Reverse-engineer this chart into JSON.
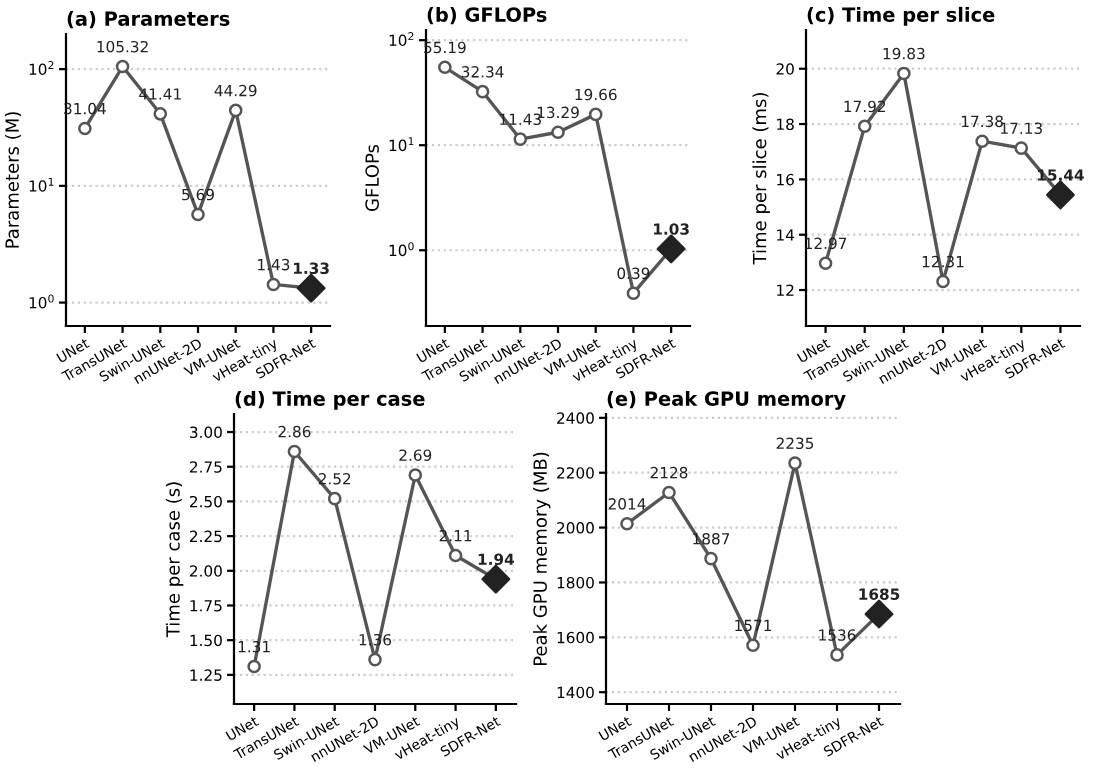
{
  "chart_data": [
    {
      "type": "line",
      "title": "(a) Parameters",
      "ylabel": "Parameters (M)",
      "log": true,
      "ylim": [
        0.63,
        200
      ],
      "yticks": [
        {
          "value": 1,
          "label": "10$^{0}$"
        },
        {
          "value": 10,
          "label": "10$^{1}$"
        },
        {
          "value": 100,
          "label": "10$^{2}$"
        }
      ],
      "grid": "y",
      "data_labels": true,
      "categories": [
        "UNet",
        "TransUNet",
        "Swin-UNet",
        "nnUNet-2D",
        "VM-UNet",
        "vHeat-tiny",
        "SDFR-Net"
      ],
      "series": [
        {
          "color": "#555555",
          "marker": [
            "circle",
            "circle",
            "circle",
            "circle",
            "circle",
            "circle",
            "diamond"
          ],
          "colors": [
            "#ffffff",
            "#ffffff",
            "#ffffff",
            "#ffffff",
            "#ffffff",
            "#ffffff",
            "#222222"
          ],
          "values": [
            31.04,
            105.32,
            41.41,
            5.69,
            44.29,
            1.43,
            1.33
          ]
        }
      ]
    },
    {
      "type": "line",
      "title": "(b) GFLOPs",
      "ylabel": "GFLOPs",
      "log": true,
      "ylim": [
        0.19,
        125
      ],
      "yticks": [
        {
          "value": 1,
          "label": "10$^{0}$"
        },
        {
          "value": 10,
          "label": "10$^{1}$"
        },
        {
          "value": 100,
          "label": "10$^{2}$"
        }
      ],
      "grid": "y",
      "data_labels": true,
      "categories": [
        "UNet",
        "TransUNet",
        "Swin-UNet",
        "nnUNet-2D",
        "VM-UNet",
        "vHeat-tiny",
        "SDFR-Net"
      ],
      "series": [
        {
          "color": "#555555",
          "marker": [
            "circle",
            "circle",
            "circle",
            "circle",
            "circle",
            "circle",
            "diamond"
          ],
          "colors": [
            "#ffffff",
            "#ffffff",
            "#ffffff",
            "#ffffff",
            "#ffffff",
            "#ffffff",
            "#222222"
          ],
          "values": [
            55.19,
            32.34,
            11.43,
            13.29,
            19.66,
            0.39,
            1.03
          ]
        }
      ]
    },
    {
      "type": "line",
      "title": "(c) Time per slice",
      "ylabel": "Time per slice (ms)",
      "ylim": [
        10.7,
        21.4
      ],
      "yticks": [
        12,
        14,
        16,
        18,
        20
      ],
      "grid": "y",
      "data_labels": true,
      "categories": [
        "UNet",
        "TransUNet",
        "Swin-UNet",
        "nnUNet-2D",
        "VM-UNet",
        "vHeat-tiny",
        "SDFR-Net"
      ],
      "series": [
        {
          "color": "#555555",
          "marker": [
            "circle",
            "circle",
            "circle",
            "circle",
            "circle",
            "circle",
            "diamond"
          ],
          "colors": [
            "#ffffff",
            "#ffffff",
            "#ffffff",
            "#ffffff",
            "#ffffff",
            "#ffffff",
            "#222222"
          ],
          "values": [
            12.97,
            17.92,
            19.83,
            12.31,
            17.38,
            17.13,
            15.44
          ]
        }
      ]
    },
    {
      "type": "line",
      "title": "(d) Time per case",
      "ylabel": "Time per case (s)",
      "ylim": [
        1.04,
        3.13
      ],
      "yticks": [
        {
          "value": 1.25,
          "label": "1.25"
        },
        {
          "value": 1.5,
          "label": "1.50"
        },
        {
          "value": 1.75,
          "label": "1.75"
        },
        {
          "value": 2.0,
          "label": "2.00"
        },
        {
          "value": 2.25,
          "label": "2.25"
        },
        {
          "value": 2.5,
          "label": "2.50"
        },
        {
          "value": 2.75,
          "label": "2.75"
        },
        {
          "value": 3.0,
          "label": "3.00"
        }
      ],
      "grid": "y",
      "data_labels": true,
      "categories": [
        "UNet",
        "TransUNet",
        "Swin-UNet",
        "nnUNet-2D",
        "VM-UNet",
        "vHeat-tiny",
        "SDFR-Net"
      ],
      "series": [
        {
          "color": "#555555",
          "marker": [
            "circle",
            "circle",
            "circle",
            "circle",
            "circle",
            "circle",
            "diamond"
          ],
          "colors": [
            "#ffffff",
            "#ffffff",
            "#ffffff",
            "#ffffff",
            "#ffffff",
            "#ffffff",
            "#222222"
          ],
          "values": [
            1.31,
            2.86,
            2.52,
            1.36,
            2.69,
            2.11,
            1.94
          ]
        }
      ]
    },
    {
      "type": "line",
      "title": "(e) Peak GPU memory",
      "ylabel": "Peak GPU memory (MB)",
      "ylim": [
        1357,
        2414
      ],
      "yticks": [
        1400,
        1600,
        1800,
        2000,
        2200,
        2400
      ],
      "grid": "y",
      "data_labels": true,
      "categories": [
        "UNet",
        "TransUNet",
        "Swin-UNet",
        "nnUNet-2D",
        "VM-UNet",
        "vHeat-tiny",
        "SDFR-Net"
      ],
      "series": [
        {
          "color": "#555555",
          "marker": [
            "circle",
            "circle",
            "circle",
            "circle",
            "circle",
            "circle",
            "diamond"
          ],
          "colors": [
            "#ffffff",
            "#ffffff",
            "#ffffff",
            "#ffffff",
            "#ffffff",
            "#ffffff",
            "#222222"
          ],
          "values": [
            2014,
            2128,
            1887,
            1571,
            2235,
            1536,
            1685
          ]
        }
      ]
    }
  ]
}
